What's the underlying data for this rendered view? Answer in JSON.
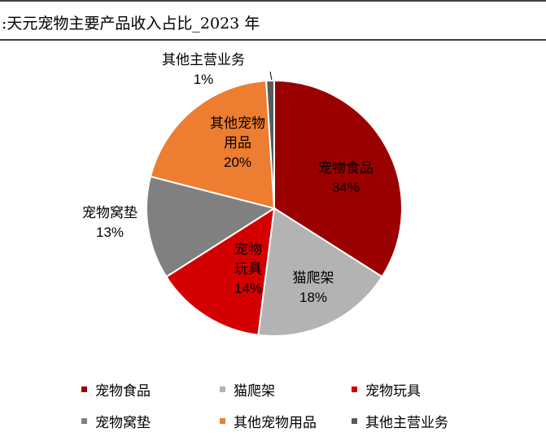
{
  "chart_data": {
    "type": "pie",
    "title": ":天元宠物主要产品收入占比_2023 年",
    "categories": [
      "宠物食品",
      "猫爬架",
      "宠物玩具",
      "宠物窝垫",
      "其他宠物用品",
      "其他主营业务"
    ],
    "values": [
      34,
      18,
      14,
      13,
      20,
      1
    ],
    "value_labels": [
      "34%",
      "18%",
      "14%",
      "13%",
      "20%",
      "1%"
    ],
    "colors": [
      "#9b0000",
      "#b3b3b3",
      "#d40000",
      "#808080",
      "#ed7d31",
      "#595959"
    ]
  }
}
